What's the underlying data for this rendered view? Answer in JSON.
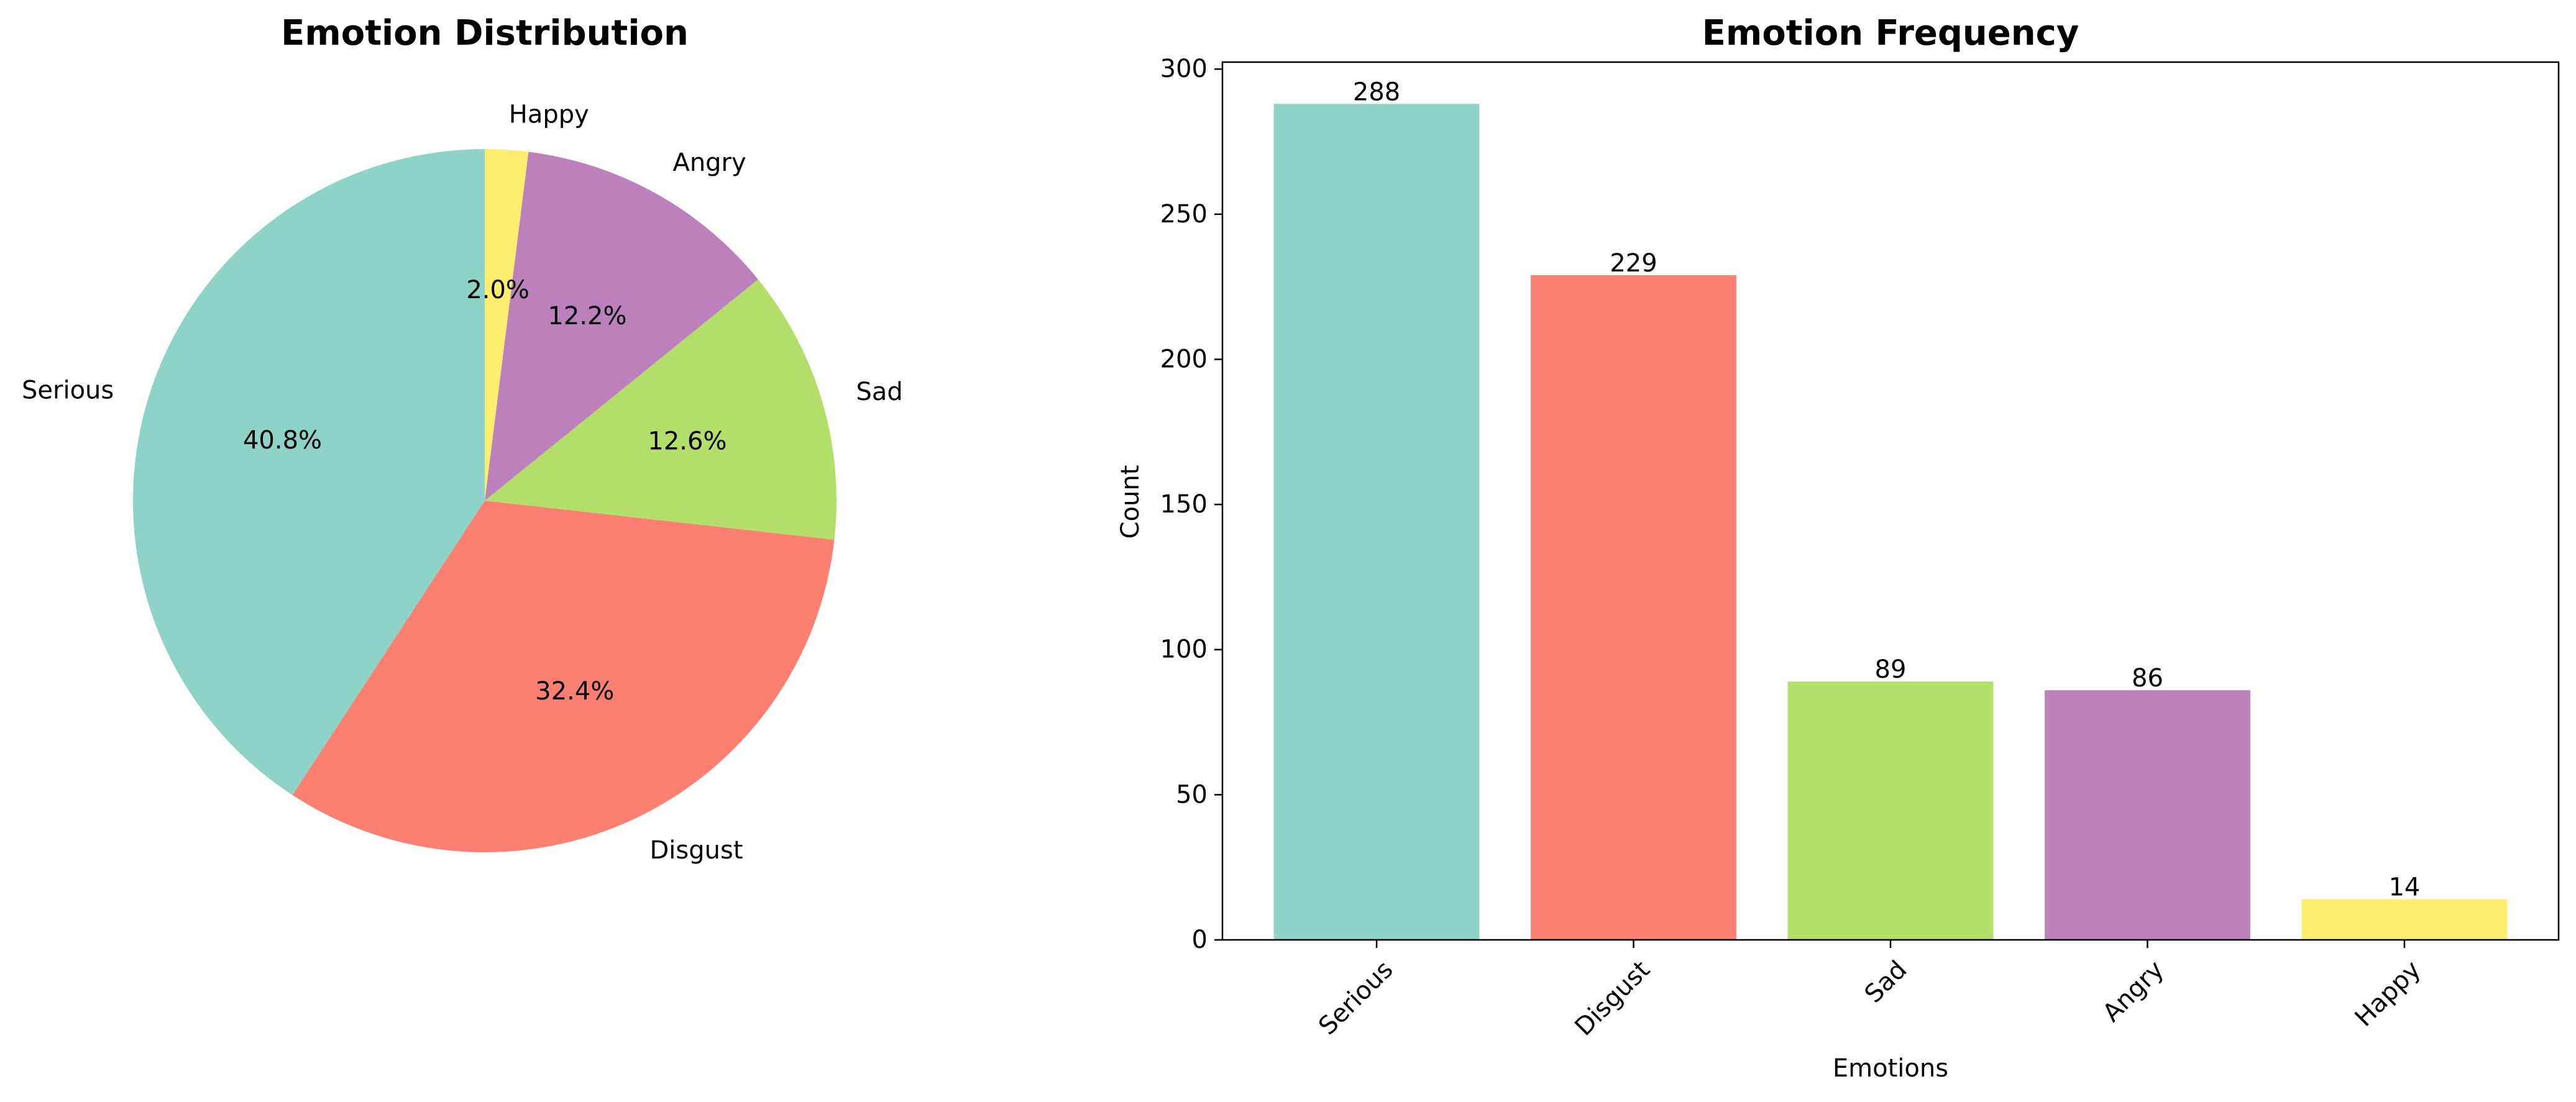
{
  "chart_data": [
    {
      "type": "pie",
      "title": "Emotion Distribution",
      "start_angle_deg": 90,
      "direction": "counterclockwise",
      "slices": [
        {
          "label": "Serious",
          "value": 288,
          "percent_label": "40.8%",
          "color": "#8dd3c7"
        },
        {
          "label": "Disgust",
          "value": 229,
          "percent_label": "32.4%",
          "color": "#fb8072"
        },
        {
          "label": "Sad",
          "value": 89,
          "percent_label": "12.6%",
          "color": "#b3de69"
        },
        {
          "label": "Angry",
          "value": 86,
          "percent_label": "12.2%",
          "color": "#bc80bd"
        },
        {
          "label": "Happy",
          "value": 14,
          "percent_label": "2.0%",
          "color": "#ffed6f"
        }
      ]
    },
    {
      "type": "bar",
      "title": "Emotion Frequency",
      "xlabel": "Emotions",
      "ylabel": "Count",
      "categories": [
        "Serious",
        "Disgust",
        "Sad",
        "Angry",
        "Happy"
      ],
      "values": [
        288,
        229,
        89,
        86,
        14
      ],
      "value_labels": [
        "288",
        "229",
        "89",
        "86",
        "14"
      ],
      "colors": [
        "#8dd3c7",
        "#fb8072",
        "#b3de69",
        "#bc80bd",
        "#ffed6f"
      ],
      "ylim": [
        0,
        302.4
      ],
      "yticks": [
        0,
        50,
        100,
        150,
        200,
        250,
        300
      ],
      "xtick_rotation_deg": 45,
      "grid": false
    }
  ]
}
